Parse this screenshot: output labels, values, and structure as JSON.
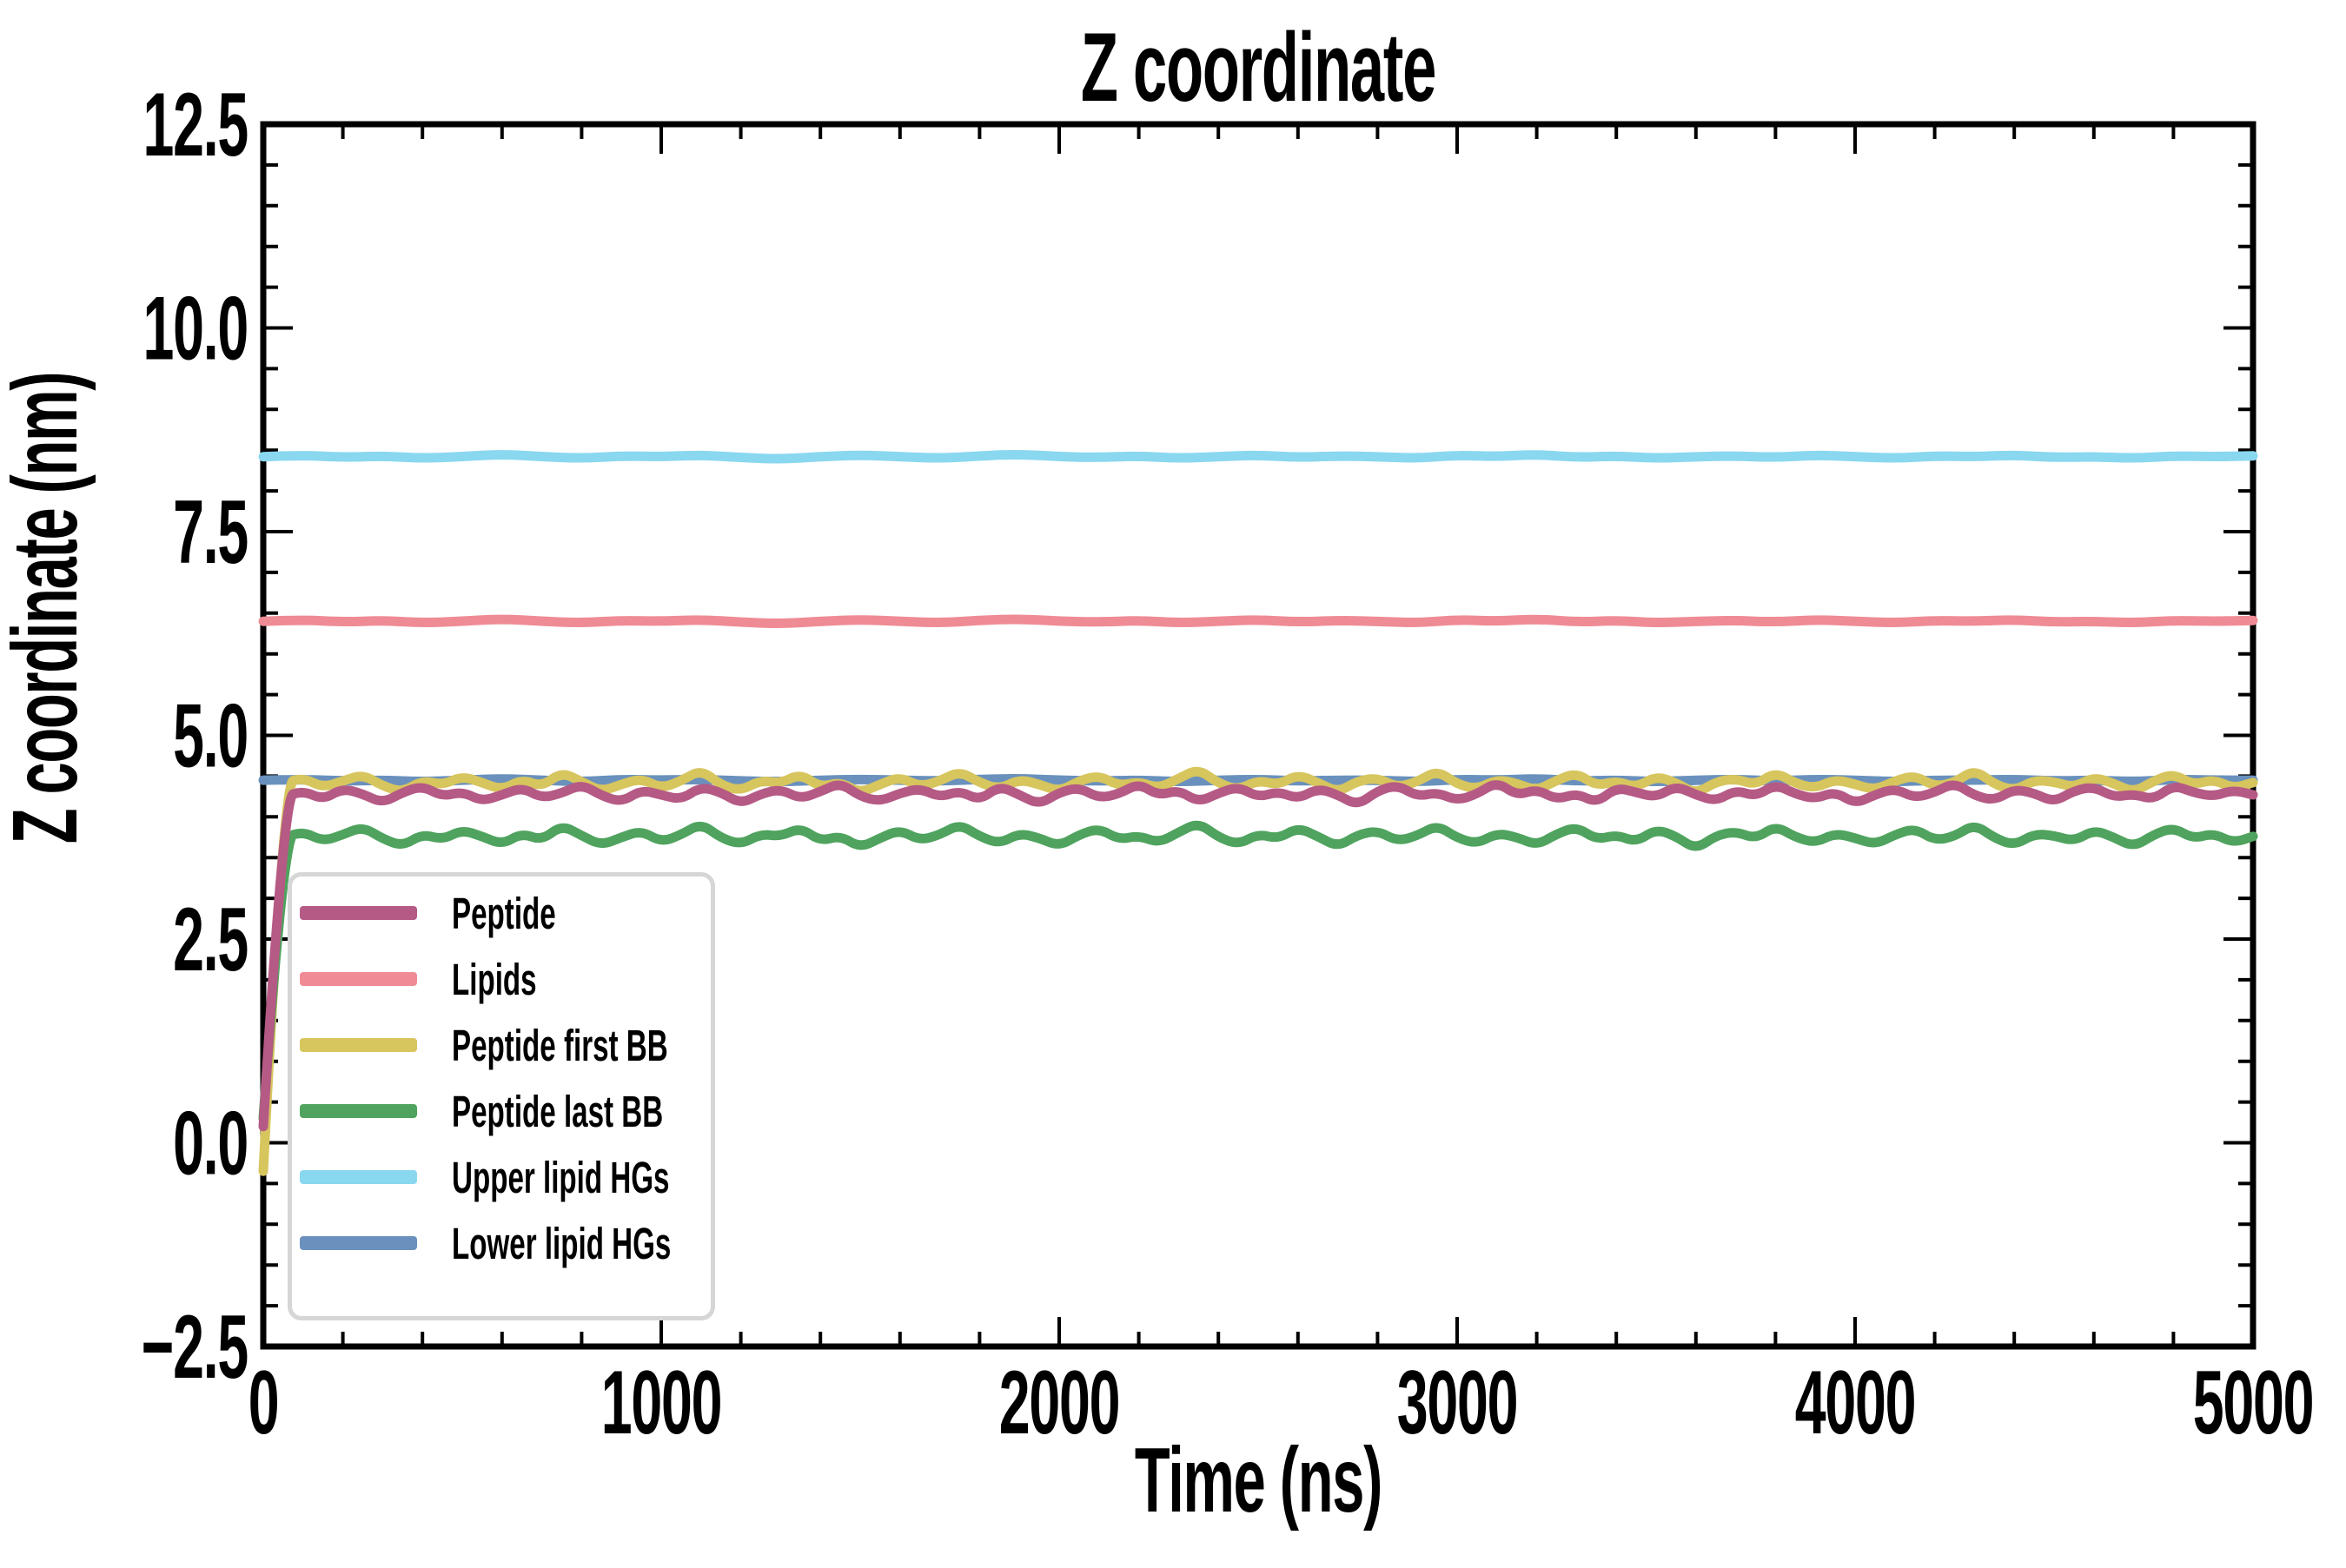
{
  "chart_data": {
    "type": "line",
    "title": "Z coordinate",
    "xlabel": "Time (ns)",
    "ylabel": "Z coordinate (nm)",
    "xlim": [
      0,
      5000
    ],
    "ylim": [
      -2.5,
      12.5
    ],
    "x_ticks": [
      0,
      1000,
      2000,
      3000,
      4000,
      5000
    ],
    "x_tick_labels": [
      "0",
      "1000",
      "2000",
      "3000",
      "4000",
      "5000"
    ],
    "x_minor_step": 200,
    "y_ticks": [
      -2.5,
      0.0,
      2.5,
      5.0,
      7.5,
      10.0,
      12.5
    ],
    "y_tick_labels": [
      "−2.5",
      "0.0",
      "2.5",
      "5.0",
      "7.5",
      "10.0",
      "12.5"
    ],
    "y_minor_step": 0.5,
    "grid": false,
    "legend_position": "lower left",
    "frame_color": "#000000",
    "background": "#ffffff",
    "legend_border_color": "#d6d6d6",
    "draw_order": [
      "Lipids",
      "Upper lipid HGs",
      "Lower lipid HGs",
      "Peptide first BB",
      "Peptide last BB",
      "Peptide"
    ],
    "series": [
      {
        "name": "Peptide",
        "color": "#b55a85",
        "x_step": 50,
        "values": [
          0.2,
          4.24,
          4.32,
          4.21,
          4.35,
          4.28,
          4.17,
          4.3,
          4.38,
          4.25,
          4.31,
          4.19,
          4.27,
          4.36,
          4.23,
          4.29,
          4.4,
          4.26,
          4.18,
          4.33,
          4.27,
          4.21,
          4.37,
          4.3,
          4.16,
          4.28,
          4.34,
          4.22,
          4.31,
          4.42,
          4.25,
          4.19,
          4.29,
          4.35,
          4.24,
          4.32,
          4.2,
          4.38,
          4.27,
          4.15,
          4.3,
          4.36,
          4.23,
          4.28,
          4.41,
          4.26,
          4.33,
          4.18,
          4.29,
          4.37,
          4.24,
          4.31,
          4.22,
          4.35,
          4.27,
          4.14,
          4.32,
          4.39,
          4.25,
          4.3,
          4.2,
          4.28,
          4.43,
          4.26,
          4.34,
          4.21,
          4.29,
          4.17,
          4.36,
          4.3,
          4.24,
          4.38,
          4.27,
          4.19,
          4.33,
          4.25,
          4.4,
          4.28,
          4.22,
          4.31,
          4.16,
          4.27,
          4.35,
          4.23,
          4.3,
          4.42,
          4.26,
          4.2,
          4.34,
          4.29,
          4.18,
          4.32,
          4.37,
          4.24,
          4.28,
          4.21,
          4.39,
          4.3,
          4.25,
          4.33,
          4.27
        ]
      },
      {
        "name": "Lipids",
        "color": "#ef8b95",
        "x_step": 100,
        "values": [
          6.4,
          6.42,
          6.39,
          6.41,
          6.38,
          6.4,
          6.43,
          6.4,
          6.38,
          6.41,
          6.4,
          6.42,
          6.39,
          6.37,
          6.4,
          6.42,
          6.4,
          6.38,
          6.41,
          6.43,
          6.4,
          6.39,
          6.41,
          6.38,
          6.4,
          6.42,
          6.39,
          6.41,
          6.4,
          6.38,
          6.42,
          6.4,
          6.43,
          6.39,
          6.41,
          6.38,
          6.4,
          6.41,
          6.39,
          6.42,
          6.4,
          6.38,
          6.41,
          6.4,
          6.42,
          6.39,
          6.4,
          6.38,
          6.41,
          6.4,
          6.41
        ]
      },
      {
        "name": "Peptide first BB",
        "color": "#d7c55e",
        "x_step": 50,
        "values": [
          -0.35,
          4.41,
          4.48,
          4.36,
          4.44,
          4.52,
          4.38,
          4.3,
          4.45,
          4.39,
          4.5,
          4.42,
          4.33,
          4.46,
          4.37,
          4.55,
          4.43,
          4.31,
          4.4,
          4.47,
          4.35,
          4.44,
          4.58,
          4.39,
          4.32,
          4.45,
          4.41,
          4.53,
          4.36,
          4.43,
          4.29,
          4.4,
          4.49,
          4.37,
          4.44,
          4.56,
          4.42,
          4.34,
          4.46,
          4.4,
          4.31,
          4.44,
          4.51,
          4.38,
          4.43,
          4.35,
          4.47,
          4.59,
          4.41,
          4.33,
          4.45,
          4.39,
          4.52,
          4.42,
          4.3,
          4.44,
          4.48,
          4.36,
          4.43,
          4.57,
          4.4,
          4.34,
          4.46,
          4.41,
          4.32,
          4.45,
          4.54,
          4.38,
          4.44,
          4.36,
          4.5,
          4.42,
          4.28,
          4.43,
          4.47,
          4.39,
          4.55,
          4.41,
          4.35,
          4.46,
          4.4,
          4.33,
          4.44,
          4.51,
          4.37,
          4.42,
          4.58,
          4.4,
          4.32,
          4.45,
          4.43,
          4.36,
          4.49,
          4.41,
          4.3,
          4.44,
          4.53,
          4.39,
          4.46,
          4.35,
          4.42
        ]
      },
      {
        "name": "Peptide last BB",
        "color": "#4fa35e",
        "x_step": 50,
        "values": [
          0.3,
          3.74,
          3.82,
          3.7,
          3.78,
          3.88,
          3.73,
          3.64,
          3.79,
          3.72,
          3.84,
          3.76,
          3.66,
          3.8,
          3.71,
          3.9,
          3.77,
          3.65,
          3.75,
          3.83,
          3.69,
          3.78,
          3.92,
          3.74,
          3.66,
          3.79,
          3.76,
          3.87,
          3.7,
          3.77,
          3.62,
          3.74,
          3.84,
          3.71,
          3.78,
          3.91,
          3.76,
          3.67,
          3.8,
          3.74,
          3.64,
          3.78,
          3.86,
          3.72,
          3.77,
          3.68,
          3.81,
          3.93,
          3.75,
          3.66,
          3.79,
          3.73,
          3.87,
          3.76,
          3.63,
          3.78,
          3.83,
          3.7,
          3.77,
          3.9,
          3.74,
          3.67,
          3.8,
          3.75,
          3.65,
          3.79,
          3.88,
          3.72,
          3.78,
          3.69,
          3.85,
          3.76,
          3.6,
          3.77,
          3.82,
          3.73,
          3.89,
          3.75,
          3.68,
          3.8,
          3.74,
          3.66,
          3.78,
          3.86,
          3.71,
          3.76,
          3.91,
          3.74,
          3.65,
          3.79,
          3.77,
          3.7,
          3.84,
          3.75,
          3.63,
          3.78,
          3.87,
          3.73,
          3.8,
          3.68,
          3.76
        ]
      },
      {
        "name": "Upper lipid HGs",
        "color": "#8ad7f0",
        "x_step": 100,
        "values": [
          8.42,
          8.44,
          8.41,
          8.43,
          8.4,
          8.42,
          8.45,
          8.42,
          8.4,
          8.43,
          8.42,
          8.44,
          8.41,
          8.39,
          8.42,
          8.44,
          8.42,
          8.4,
          8.43,
          8.45,
          8.42,
          8.41,
          8.43,
          8.4,
          8.42,
          8.44,
          8.41,
          8.43,
          8.42,
          8.4,
          8.44,
          8.42,
          8.45,
          8.41,
          8.43,
          8.4,
          8.42,
          8.43,
          8.41,
          8.44,
          8.42,
          8.4,
          8.43,
          8.42,
          8.44,
          8.41,
          8.42,
          8.4,
          8.43,
          8.42,
          8.43
        ]
      },
      {
        "name": "Lower lipid HGs",
        "color": "#6a91bd",
        "x_step": 100,
        "values": [
          4.45,
          4.46,
          4.44,
          4.45,
          4.43,
          4.45,
          4.47,
          4.45,
          4.43,
          4.46,
          4.45,
          4.46,
          4.44,
          4.43,
          4.45,
          4.46,
          4.45,
          4.44,
          4.46,
          4.47,
          4.45,
          4.44,
          4.45,
          4.43,
          4.45,
          4.46,
          4.44,
          4.45,
          4.45,
          4.43,
          4.46,
          4.45,
          4.47,
          4.44,
          4.45,
          4.43,
          4.45,
          4.46,
          4.44,
          4.46,
          4.45,
          4.43,
          4.45,
          4.45,
          4.46,
          4.44,
          4.45,
          4.43,
          4.46,
          4.45,
          4.45
        ]
      }
    ]
  }
}
